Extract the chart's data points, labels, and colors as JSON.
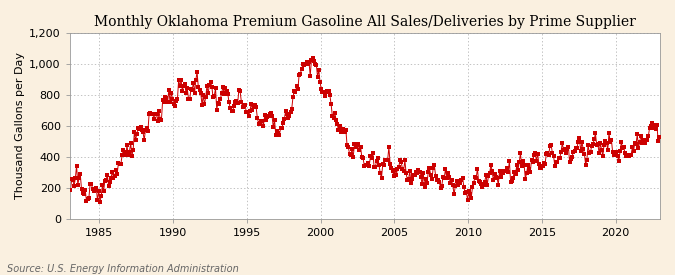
{
  "title": "Monthly Oklahoma Premium Gasoline All Sales/Deliveries by Prime Supplier",
  "ylabel": "Thousand Gallons per Day",
  "source": "Source: U.S. Energy Information Administration",
  "fig_bg_color": "#FAF0E0",
  "plot_bg_color": "#FFFFFF",
  "dot_color": "#CC0000",
  "line_color": "#CC0000",
  "grid_color": "#AAAAAA",
  "ylim": [
    0,
    1200
  ],
  "yticks": [
    0,
    200,
    400,
    600,
    800,
    1000,
    1200
  ],
  "ytick_labels": [
    "0",
    "200",
    "400",
    "600",
    "800",
    "1,000",
    "1,200"
  ],
  "xlim_start": 1983.0,
  "xlim_end": 2023.0,
  "xticks": [
    1985,
    1990,
    1995,
    2000,
    2005,
    2010,
    2015,
    2020
  ],
  "title_fontsize": 10,
  "axis_label_fontsize": 8,
  "tick_fontsize": 8,
  "source_fontsize": 7,
  "dot_size": 5,
  "dot_marker": "s",
  "line_width": 0.7
}
